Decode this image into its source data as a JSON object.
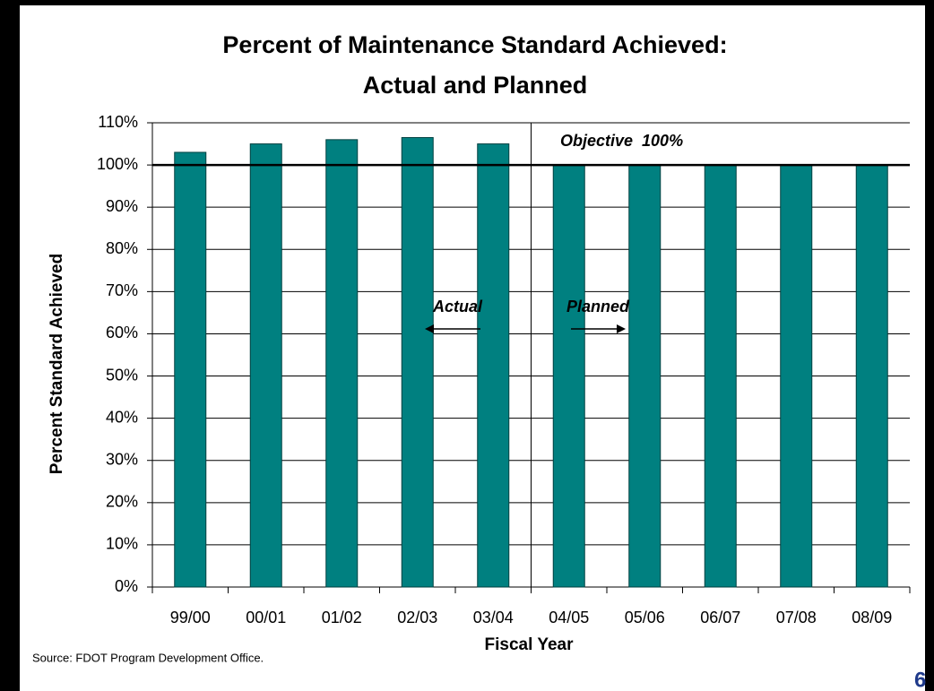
{
  "chart_data": {
    "type": "bar",
    "title": "Percent of Maintenance Standard Achieved:",
    "subtitle": "Actual and Planned",
    "x_label": "Fiscal Year",
    "y_label": "Percent Standard Achieved",
    "categories": [
      "99/00",
      "00/01",
      "01/02",
      "02/03",
      "03/04",
      "04/05",
      "05/06",
      "06/07",
      "07/08",
      "08/09"
    ],
    "values": [
      103,
      105,
      106,
      106.5,
      105,
      100,
      100,
      100,
      100,
      100
    ],
    "color": "#008080",
    "ylim": [
      0,
      110
    ],
    "yticks": [
      {
        "value": 0,
        "label": "0%"
      },
      {
        "value": 10,
        "label": "10%"
      },
      {
        "value": 20,
        "label": "20%"
      },
      {
        "value": 30,
        "label": "30%"
      },
      {
        "value": 40,
        "label": "40%"
      },
      {
        "value": 50,
        "label": "50%"
      },
      {
        "value": 60,
        "label": "60%"
      },
      {
        "value": 70,
        "label": "70%"
      },
      {
        "value": 80,
        "label": "80%"
      },
      {
        "value": 90,
        "label": "90%"
      },
      {
        "value": 100,
        "label": "100%"
      },
      {
        "value": 110,
        "label": "110%"
      }
    ],
    "grid": true,
    "objective": {
      "value": 100,
      "label": "Objective  100%"
    },
    "annotations": [
      "Actual",
      "Planned"
    ],
    "source": "Source: FDOT Program Development Office.",
    "page_number": "6"
  }
}
